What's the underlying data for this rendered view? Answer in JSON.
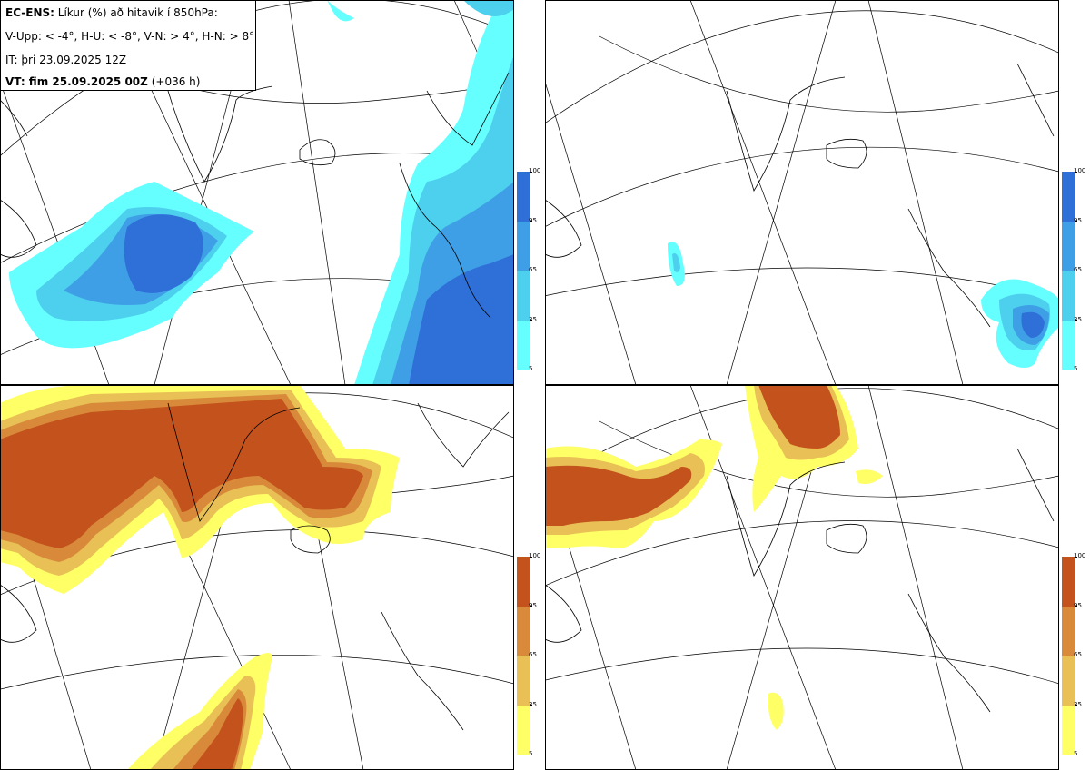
{
  "legend": {
    "model": "EC-ENS:",
    "title": "Líkur (%) að hitavik í 850hPa:",
    "thresholds": "V-Upp: < -4°, H-U: < -8°, V-N: > 4°, H-N: > 8°",
    "initial_time": "IT: þri 23.09.2025 12Z",
    "valid_label": "VT: fim 25.09.2025 00Z",
    "lead_time": "(+036 h)"
  },
  "colorbar": {
    "ticks": [
      "5",
      "35",
      "65",
      "95",
      "100"
    ],
    "cold_colors": [
      "#66ffff",
      "#4dcfee",
      "#3f9fe6",
      "#2f6fd8"
    ],
    "warm_colors": [
      "#ffff66",
      "#e8c055",
      "#d88a3a",
      "#c4521c"
    ]
  },
  "panels": [
    {
      "name": "V-Upp",
      "scheme": "cold"
    },
    {
      "name": "H-U",
      "scheme": "cold"
    },
    {
      "name": "V-N",
      "scheme": "warm"
    },
    {
      "name": "H-N",
      "scheme": "warm"
    }
  ]
}
